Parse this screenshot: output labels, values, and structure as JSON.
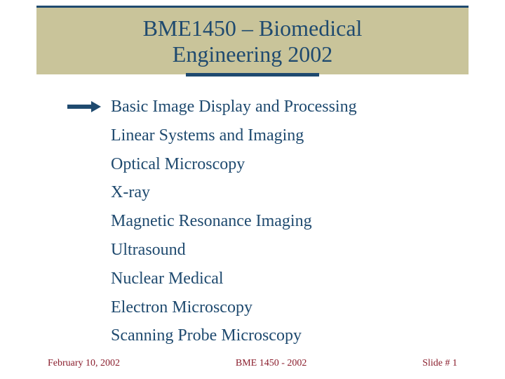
{
  "colors": {
    "band_bg": "#c9c49a",
    "primary": "#1f4a6f",
    "footer": "#8a1d2c",
    "page_bg": "#ffffff"
  },
  "title": {
    "line1": "BME1450 – Biomedical",
    "line2": "Engineering 2002",
    "fontsize": 32
  },
  "topics": [
    {
      "label": "Basic Image Display and Processing",
      "active": true
    },
    {
      "label": "Linear Systems and Imaging",
      "active": false
    },
    {
      "label": "Optical Microscopy",
      "active": false
    },
    {
      "label": "X-ray",
      "active": false
    },
    {
      "label": "Magnetic Resonance Imaging",
      "active": false
    },
    {
      "label": "Ultrasound",
      "active": false
    },
    {
      "label": "Nuclear Medical",
      "active": false
    },
    {
      "label": "Electron Microscopy",
      "active": false
    },
    {
      "label": "Scanning Probe Microscopy",
      "active": false
    }
  ],
  "topic_fontsize": 24,
  "footer": {
    "left": "February 10, 2002",
    "center": "BME 1450 - 2002",
    "right": "Slide # 1",
    "fontsize": 14
  }
}
